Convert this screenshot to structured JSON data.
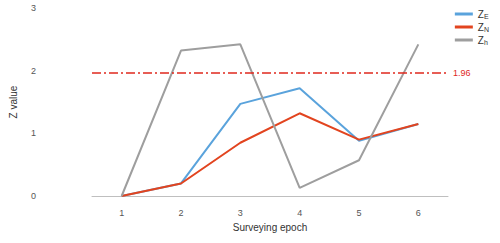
{
  "chart_data": {
    "type": "line",
    "x_label": "Surveying epoch",
    "y_label": "Z value",
    "categories": [
      "1",
      "2",
      "3",
      "4",
      "5",
      "6"
    ],
    "series": [
      {
        "name": "ZE",
        "color": "#5aa3dc",
        "values": [
          0,
          0.2,
          1.47,
          1.72,
          0.88,
          1.15
        ]
      },
      {
        "name": "ZN",
        "color": "#e2441f",
        "values": [
          0,
          0.2,
          0.85,
          1.32,
          0.9,
          1.15
        ]
      },
      {
        "name": "Zh",
        "color": "#9e9e9e",
        "values": [
          0,
          2.32,
          2.42,
          0.13,
          0.57,
          2.42
        ]
      }
    ],
    "reference_line": {
      "value": 1.96,
      "color": "#e0281e",
      "line_style": "dashdot"
    },
    "ylim": [
      0,
      3
    ],
    "yticks": [
      0,
      1,
      2,
      3
    ],
    "grid": false,
    "legend": "top-right"
  }
}
